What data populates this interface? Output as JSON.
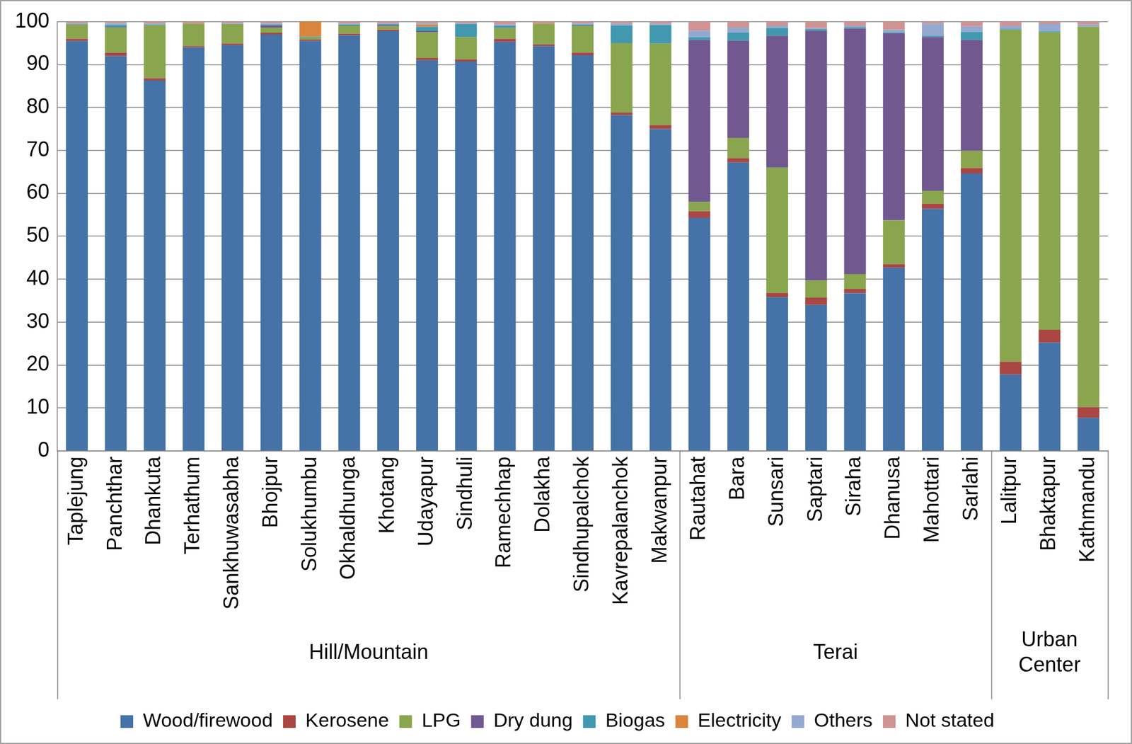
{
  "chart_data": {
    "type": "bar",
    "stacked": true,
    "grid": true,
    "legend": "bottom",
    "categories": [
      "Taplejung",
      "Panchthar",
      "Dhankuta",
      "Terhathum",
      "Sankhuwasabha",
      "Bhojpur",
      "Solukhumbu",
      "Okhaldhunga",
      "Khotang",
      "Udayapur",
      "Sindhuli",
      "Ramechhap",
      "Dolakha",
      "Sindhupalchok",
      "Kavrepalanchok",
      "Makwanpur",
      "Rautahat",
      "Bara",
      "Sunsari",
      "Saptari",
      "Siraha",
      "Dhanusa",
      "Mahottari",
      "Sarlahi",
      "Lalitpur",
      "Bhaktapur",
      "Kathmandu"
    ],
    "groups": [
      {
        "label": "Hill/Mountain",
        "categories": [
          "Taplejung",
          "Panchthar",
          "Dhankuta",
          "Terhathum",
          "Sankhuwasabha",
          "Bhojpur",
          "Solukhumbu",
          "Okhaldhunga",
          "Khotang",
          "Udayapur",
          "Sindhuli",
          "Ramechhap",
          "Dolakha",
          "Sindhupalchok",
          "Kavrepalanchok",
          "Makwanpur"
        ]
      },
      {
        "label": "Terai",
        "categories": [
          "Rautahat",
          "Bara",
          "Sunsari",
          "Saptari",
          "Siraha",
          "Dhanusa",
          "Mahottari",
          "Sarlahi"
        ]
      },
      {
        "label": "Urban Center",
        "categories": [
          "Lalitpur",
          "Bhaktapur",
          "Kathmandu"
        ]
      }
    ],
    "ylim": [
      0,
      100
    ],
    "yticks": [
      0,
      10,
      20,
      30,
      40,
      50,
      60,
      70,
      80,
      90,
      100
    ],
    "series": [
      {
        "name": "Wood/firewood",
        "color": "#4572A7",
        "values": [
          95.5,
          92,
          86.3,
          94,
          94.5,
          97,
          95.5,
          96.8,
          97.8,
          91,
          90.7,
          95.3,
          94.3,
          92.2,
          78.2,
          75,
          54.3,
          67.2,
          35.8,
          34,
          36.7,
          42.7,
          56.4,
          64.6,
          17.8,
          25.2,
          7.7
        ]
      },
      {
        "name": "Kerosene",
        "color": "#AA4643",
        "values": [
          0.5,
          0.8,
          0.5,
          0.3,
          0.4,
          0.4,
          0.3,
          0.4,
          0.3,
          0.5,
          0.5,
          0.7,
          0.4,
          0.6,
          0.6,
          0.9,
          1.5,
          1,
          1,
          1.7,
          1,
          0.8,
          1.2,
          1.3,
          3,
          3,
          2.5
        ]
      },
      {
        "name": "LPG",
        "color": "#89A54E",
        "values": [
          3.3,
          5.8,
          12.3,
          5.2,
          4.5,
          1.2,
          0.5,
          1.8,
          0.8,
          6,
          5.2,
          2.5,
          4.8,
          6.2,
          16.2,
          19,
          2.2,
          4.7,
          29.2,
          4,
          3.5,
          10.2,
          3,
          4,
          77.3,
          69.3,
          88.6
        ]
      },
      {
        "name": "Dry dung",
        "color": "#71588F",
        "values": [
          0,
          0.1,
          0,
          0,
          0,
          0.5,
          0,
          0,
          0.3,
          0.3,
          0,
          0,
          0,
          0,
          0,
          0,
          37.7,
          22.7,
          30.7,
          58.2,
          57.2,
          43.6,
          35.8,
          25.8,
          0,
          0,
          0
        ]
      },
      {
        "name": "Biogas",
        "color": "#4198AF",
        "values": [
          0.1,
          0.5,
          0.2,
          0,
          0,
          0.2,
          0.2,
          0.3,
          0.2,
          1,
          3,
          0.5,
          0,
          0.3,
          4.1,
          4.3,
          0.7,
          1.8,
          1.8,
          0.3,
          0.3,
          0.2,
          0.3,
          1.9,
          0.2,
          0.2,
          0
        ]
      },
      {
        "name": "Electricity",
        "color": "#DB843D",
        "values": [
          0,
          0,
          0,
          0,
          0,
          0,
          3.5,
          0,
          0,
          0.5,
          0,
          0,
          0,
          0,
          0,
          0,
          0,
          0,
          0,
          0,
          0,
          0,
          0,
          0,
          0,
          0,
          0
        ]
      },
      {
        "name": "Others",
        "color": "#93A9CF",
        "values": [
          0.2,
          0.4,
          0.2,
          0,
          0.2,
          0.3,
          0,
          0.2,
          0.2,
          0.3,
          0.2,
          0.3,
          0,
          0.2,
          0.4,
          0.3,
          1.5,
          1.2,
          0.5,
          0.3,
          0.3,
          0.6,
          2.8,
          1.3,
          0.7,
          1.7,
          0.5
        ]
      },
      {
        "name": "Not stated",
        "color": "#D19392",
        "values": [
          0.4,
          0.4,
          0.5,
          0.5,
          0.4,
          0.4,
          0,
          0.5,
          0.4,
          0.4,
          0.4,
          0.7,
          0.5,
          0.5,
          0.5,
          0.5,
          2.1,
          1.4,
          1,
          1.5,
          1,
          1.9,
          0.5,
          1.1,
          1,
          0.6,
          0.7
        ]
      }
    ]
  }
}
